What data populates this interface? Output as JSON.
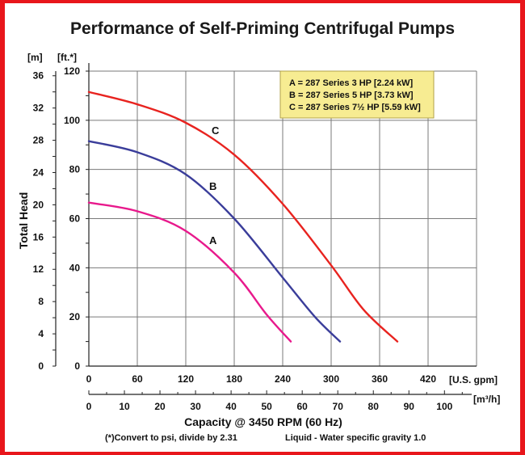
{
  "chart_data": {
    "type": "line",
    "title": "Performance of Self-Priming Centrifugal Pumps",
    "ylabel": "Total Head",
    "xlabel": "Capacity @ 3450 RPM (60 Hz)",
    "units": {
      "y_left": "[m]",
      "y_right": "[ft.*]",
      "x_top": "[U.S. gpm]",
      "x_bottom": "[m³/h]"
    },
    "x_gpm_ticks": [
      "0",
      "60",
      "120",
      "180",
      "240",
      "300",
      "360",
      "420"
    ],
    "x_m3h_ticks": [
      "0",
      "10",
      "20",
      "30",
      "40",
      "50",
      "60",
      "70",
      "80",
      "90",
      "100"
    ],
    "y_ft_ticks": [
      "0",
      "20",
      "40",
      "60",
      "80",
      "100",
      "120"
    ],
    "y_m_ticks": [
      "0",
      "4",
      "8",
      "12",
      "16",
      "20",
      "24",
      "28",
      "32",
      "36"
    ],
    "xlim_gpm": [
      0,
      480
    ],
    "ylim_ft": [
      0,
      120
    ],
    "grid": true,
    "legend_position": "top-right",
    "legend": [
      "A = 287 Series 3 HP [2.24 kW]",
      "B = 287 Series 5 HP [3.73 kW]",
      "C = 287 Series 7½ HP [5.59 kW]"
    ],
    "series": [
      {
        "label": "A",
        "color": "#e8198c",
        "points": [
          [
            0,
            66.5
          ],
          [
            60,
            63
          ],
          [
            120,
            55
          ],
          [
            180,
            38
          ],
          [
            220,
            21
          ],
          [
            250,
            10
          ]
        ]
      },
      {
        "label": "B",
        "color": "#3a3d9a",
        "points": [
          [
            0,
            91.5
          ],
          [
            60,
            87
          ],
          [
            120,
            78
          ],
          [
            180,
            60
          ],
          [
            240,
            36
          ],
          [
            280,
            20
          ],
          [
            311,
            10
          ]
        ]
      },
      {
        "label": "C",
        "color": "#e8231f",
        "points": [
          [
            0,
            111.5
          ],
          [
            60,
            106.5
          ],
          [
            120,
            99
          ],
          [
            180,
            86
          ],
          [
            240,
            66
          ],
          [
            300,
            41
          ],
          [
            340,
            23
          ],
          [
            382,
            10
          ]
        ]
      }
    ],
    "footnote_left": "(*)Convert to psi, divide by 2.31",
    "footnote_right": "Liquid - Water specific gravity 1.0"
  },
  "colors": {
    "frame": "#e8161b",
    "legend_bg": "#f7ec92",
    "legend_border": "#b2a24a",
    "grid": "#7a7a7a"
  }
}
